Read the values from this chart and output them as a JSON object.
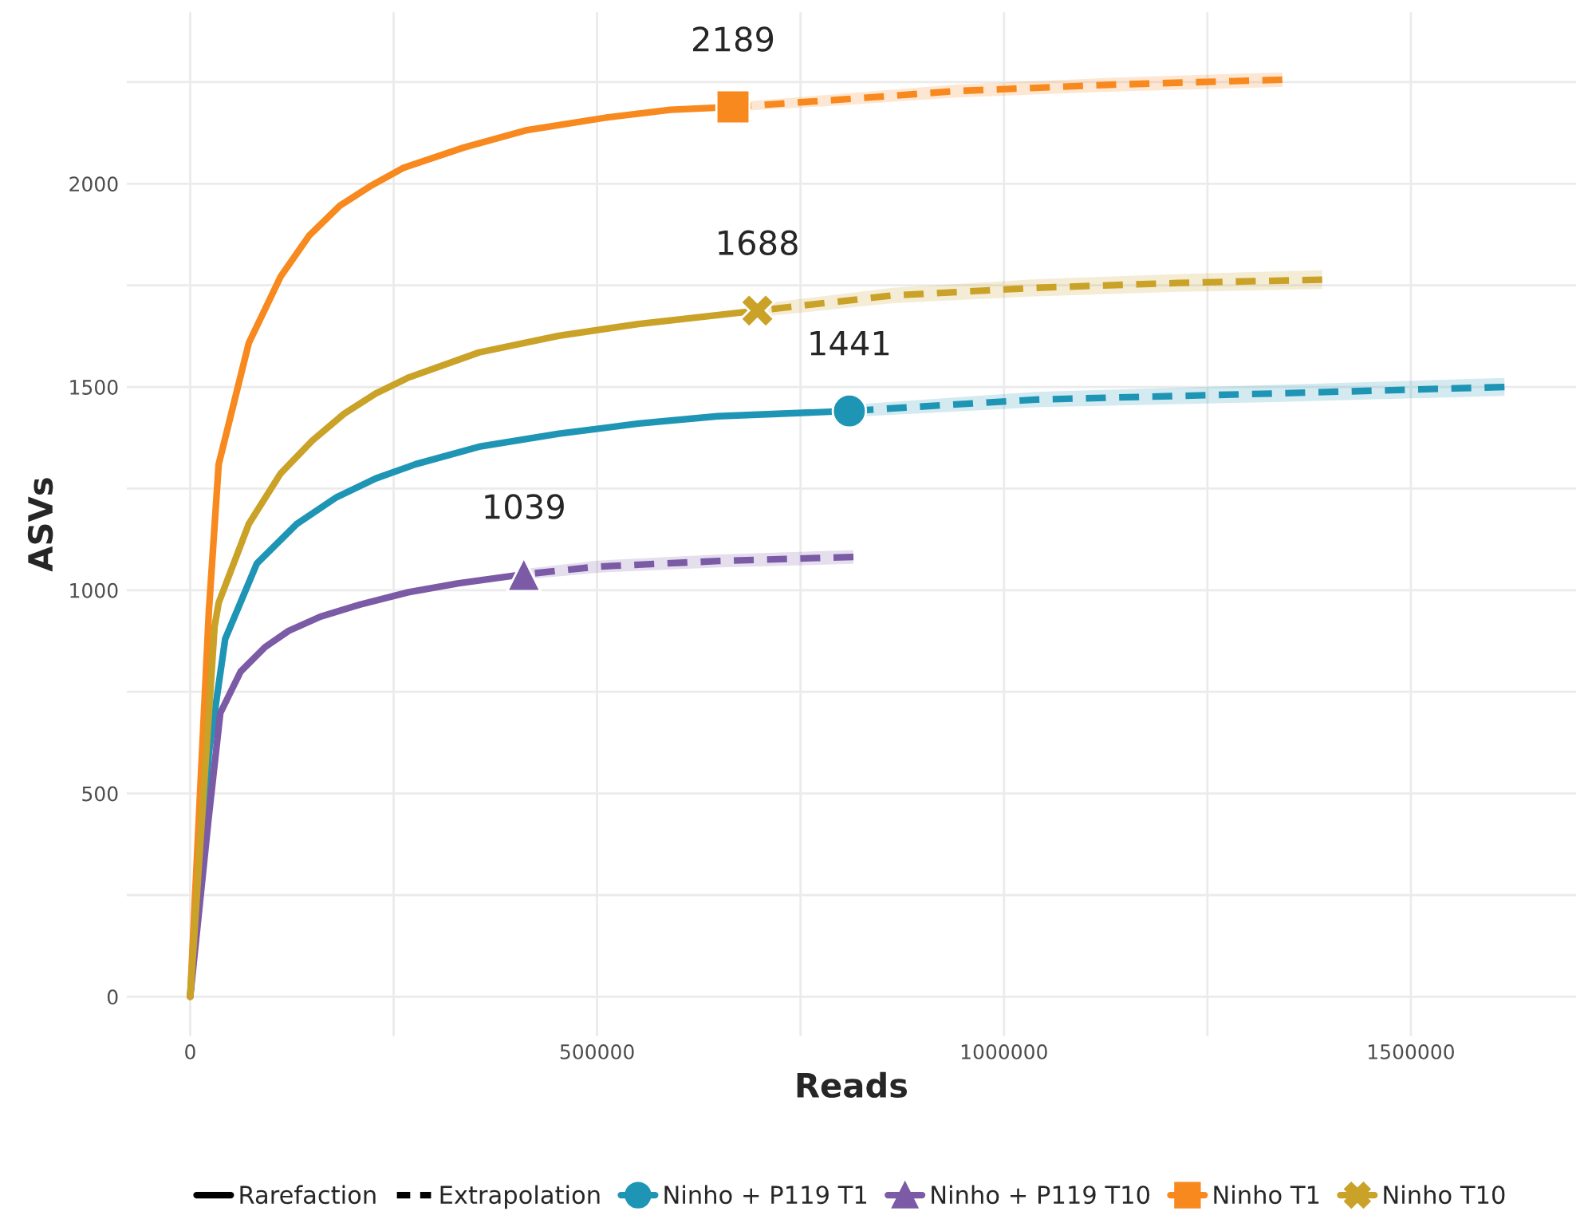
{
  "chart_data": {
    "type": "line",
    "xlabel": "Reads",
    "ylabel": "ASVs",
    "xlim": [
      -78000,
      1703000
    ],
    "ylim": [
      -97,
      2422
    ],
    "xticks": [
      0,
      {
        "value": 250000,
        "label": null
      },
      500000,
      {
        "value": 750000,
        "label": null
      },
      1000000,
      {
        "value": 1250000,
        "label": null
      },
      1500000
    ],
    "yticks": [
      0,
      {
        "value": 250,
        "label": null
      },
      500,
      {
        "value": 750,
        "label": null
      },
      1000,
      {
        "value": 1250,
        "label": null
      },
      1500,
      {
        "value": 1750,
        "label": null
      },
      2000,
      {
        "value": 2250,
        "label": null
      }
    ],
    "grid": true,
    "legend": "bottom",
    "annotations": [
      "Rarefaction",
      "Extrapolation",
      {
        "text": "2189",
        "x": 667000,
        "y": 2189
      },
      {
        "text": "1688",
        "x": 697000,
        "y": 1688
      },
      {
        "text": "1441",
        "x": 810000,
        "y": 1441
      },
      {
        "text": "1039",
        "x": 410000,
        "y": 1039
      }
    ],
    "series": [
      {
        "name": "Ninho + P119 T1",
        "color": "#1f95b5",
        "line_style": "solid",
        "x": [
          0,
          23000,
          43000,
          82000,
          131000,
          180000,
          228000,
          277000,
          355000,
          453000,
          551000,
          648000,
          810000
        ],
        "values": [
          0,
          600,
          880,
          1066,
          1163,
          1229,
          1275,
          1310,
          1353,
          1385,
          1410,
          1428,
          1441
        ]
      },
      {
        "color": "#1f95b5",
        "line_style": "dashed",
        "x": [
          810000,
          1039000,
          1332000,
          1615000
        ],
        "values": [
          1441,
          1469,
          1484,
          1500
        ],
        "lower": [
          1426,
          1450,
          1463,
          1478
        ],
        "upper": [
          1456,
          1488,
          1505,
          1522
        ]
      },
      {
        "color": "#1f95b5",
        "type": "scatter",
        "marker": "circle",
        "x": [
          810000
        ],
        "values": [
          1441
        ]
      },
      {
        "name": "Ninho + P119 T10",
        "color": "#7b5aa6",
        "line_style": "solid",
        "x": [
          0,
          23000,
          37000,
          62000,
          92000,
          121000,
          160000,
          209000,
          268000,
          330000,
          410000
        ],
        "values": [
          0,
          446,
          698,
          800,
          860,
          900,
          935,
          965,
          995,
          1017,
          1039
        ]
      },
      {
        "color": "#7b5aa6",
        "line_style": "dashed",
        "x": [
          410000,
          500000,
          650000,
          815000
        ],
        "values": [
          1039,
          1058,
          1072,
          1082
        ],
        "lower": [
          1026,
          1043,
          1056,
          1065
        ],
        "upper": [
          1052,
          1073,
          1088,
          1099
        ]
      },
      {
        "color": "#7b5aa6",
        "type": "scatter",
        "marker": "triangle",
        "x": [
          410000
        ],
        "values": [
          1039
        ]
      },
      {
        "name": "Ninho T1",
        "color": "#f7891f",
        "line_style": "solid",
        "x": [
          0,
          23000,
          35000,
          72000,
          111000,
          146000,
          184000,
          223000,
          262000,
          336000,
          414000,
          512000,
          590000,
          667000
        ],
        "values": [
          0,
          950,
          1310,
          1608,
          1771,
          1872,
          1946,
          1996,
          2039,
          2089,
          2132,
          2163,
          2182,
          2189
        ]
      },
      {
        "color": "#f7891f",
        "line_style": "dashed",
        "x": [
          667000,
          785000,
          941000,
          1137000,
          1342000
        ],
        "values": [
          2189,
          2205,
          2228,
          2244,
          2256
        ],
        "lower": [
          2178,
          2191,
          2212,
          2227,
          2238
        ],
        "upper": [
          2200,
          2219,
          2244,
          2261,
          2274
        ]
      },
      {
        "color": "#f7891f",
        "type": "scatter",
        "marker": "square",
        "x": [
          667000
        ],
        "values": [
          2189
        ]
      },
      {
        "name": "Ninho T10",
        "color": "#c9a227",
        "line_style": "solid",
        "x": [
          0,
          30000,
          35000,
          72000,
          111000,
          150000,
          189000,
          228000,
          268000,
          355000,
          453000,
          551000,
          697000
        ],
        "values": [
          0,
          911,
          969,
          1163,
          1287,
          1368,
          1434,
          1484,
          1523,
          1585,
          1626,
          1655,
          1688
        ]
      },
      {
        "color": "#c9a227",
        "line_style": "dashed",
        "x": [
          697000,
          863000,
          1039000,
          1215000,
          1391000
        ],
        "values": [
          1688,
          1725,
          1744,
          1756,
          1764
        ],
        "lower": [
          1672,
          1706,
          1723,
          1734,
          1741
        ],
        "upper": [
          1704,
          1744,
          1765,
          1778,
          1787
        ]
      },
      {
        "color": "#c9a227",
        "type": "scatter",
        "marker": "cross",
        "x": [
          697000
        ],
        "values": [
          1688
        ]
      }
    ]
  }
}
